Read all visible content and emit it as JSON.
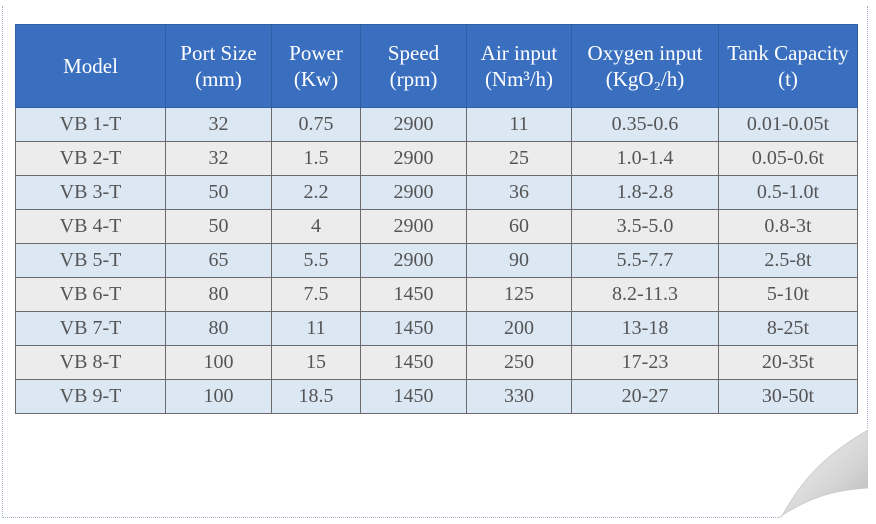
{
  "table": {
    "headers": [
      {
        "line1": "Model",
        "line2": ""
      },
      {
        "line1": "Port Size",
        "line2": "(mm)"
      },
      {
        "line1": "Power",
        "line2": "(Kw)"
      },
      {
        "line1": "Speed",
        "line2": "(rpm)"
      },
      {
        "line1": "Air input",
        "line2": "(Nm³/h)"
      },
      {
        "line1": "Oxygen input",
        "line2": "(KgO₂/h)"
      },
      {
        "line1": "Tank Capacity",
        "line2": "(t)"
      }
    ],
    "rows": [
      [
        "VB 1-T",
        "32",
        "0.75",
        "2900",
        "11",
        "0.35-0.6",
        "0.01-0.05t"
      ],
      [
        "VB 2-T",
        "32",
        "1.5",
        "2900",
        "25",
        "1.0-1.4",
        "0.05-0.6t"
      ],
      [
        "VB 3-T",
        "50",
        "2.2",
        "2900",
        "36",
        "1.8-2.8",
        "0.5-1.0t"
      ],
      [
        "VB 4-T",
        "50",
        "4",
        "2900",
        "60",
        "3.5-5.0",
        "0.8-3t"
      ],
      [
        "VB 5-T",
        "65",
        "5.5",
        "2900",
        "90",
        "5.5-7.7",
        "2.5-8t"
      ],
      [
        "VB 6-T",
        "80",
        "7.5",
        "1450",
        "125",
        "8.2-11.3",
        "5-10t"
      ],
      [
        "VB 7-T",
        "80",
        "11",
        "1450",
        "200",
        "13-18",
        "8-25t"
      ],
      [
        "VB 8-T",
        "100",
        "15",
        "1450",
        "250",
        "17-23",
        "20-35t"
      ],
      [
        "VB 9-T",
        "100",
        "18.5",
        "1450",
        "330",
        "20-27",
        "30-50t"
      ]
    ]
  },
  "colors": {
    "header_bg": "#3a6fc0",
    "row_odd_bg": "#dce7f4",
    "row_even_bg": "#ececec",
    "text": "#555555"
  }
}
